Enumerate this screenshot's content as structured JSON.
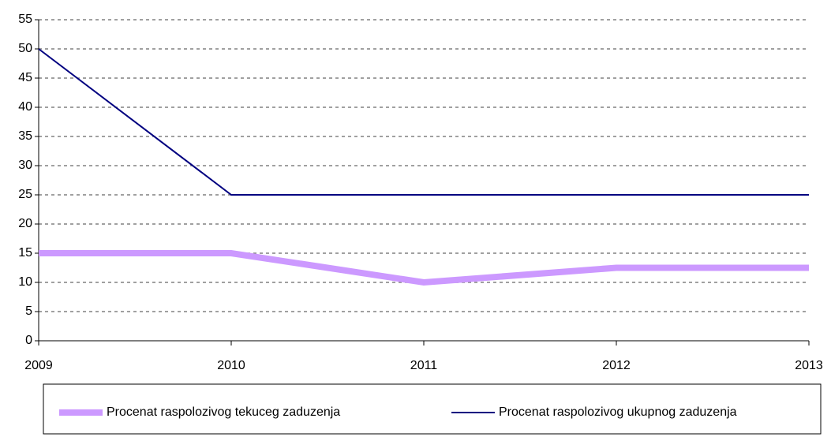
{
  "chart_data": {
    "type": "line",
    "categories": [
      "2009",
      "2010",
      "2011",
      "2012",
      "2013"
    ],
    "series": [
      {
        "name": "Procenat raspolozivog tekuceg zaduzenja",
        "color": "#cc99ff",
        "values": [
          15,
          15,
          10,
          12.5,
          12.5
        ]
      },
      {
        "name": "Procenat raspolozivog ukupnog zaduzenja",
        "color": "#000080",
        "values": [
          50,
          25,
          25,
          25,
          25
        ]
      }
    ],
    "ylim": [
      0,
      55
    ],
    "yticks": [
      0,
      5,
      10,
      15,
      20,
      25,
      30,
      35,
      40,
      45,
      50,
      55
    ],
    "grid": true,
    "legend": "bottom"
  }
}
